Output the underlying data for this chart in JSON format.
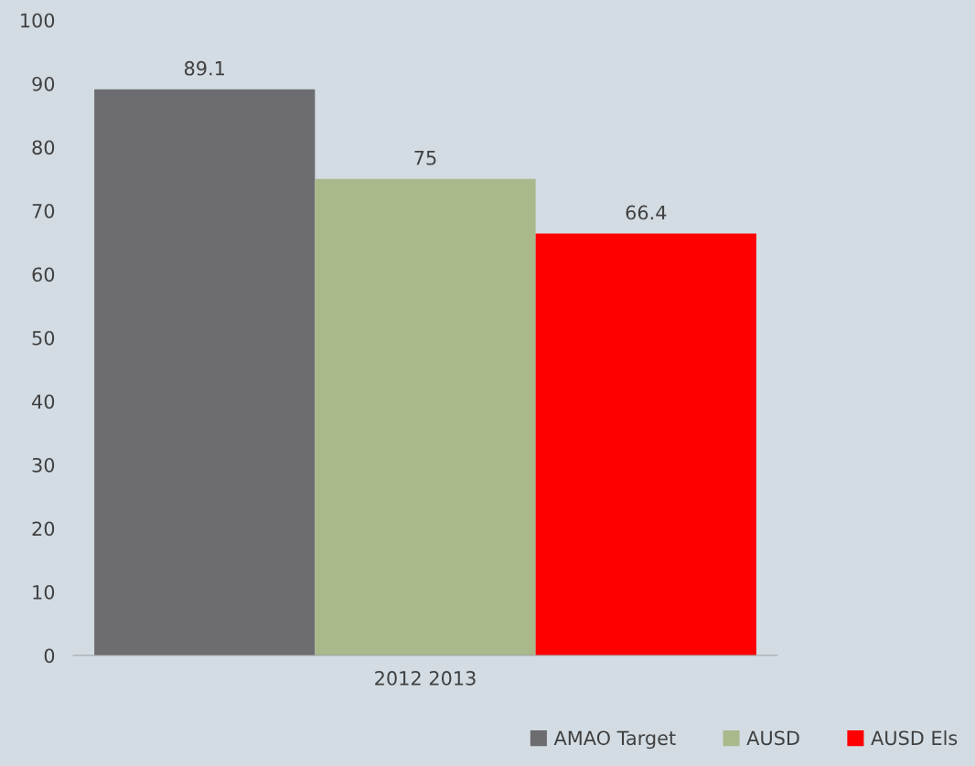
{
  "chart_data": {
    "type": "bar",
    "categories": [
      "2012 2013"
    ],
    "series": [
      {
        "name": "AMAO Target",
        "color": "#6d6c70",
        "values": [
          89.1
        ]
      },
      {
        "name": "AUSD",
        "color": "#a9b98c",
        "values": [
          75
        ]
      },
      {
        "name": "AUSD Els",
        "color": "#ff0000",
        "values": [
          66.4
        ]
      }
    ],
    "ylim": [
      0,
      100
    ],
    "yticks": [
      0,
      10,
      20,
      30,
      40,
      50,
      60,
      70,
      80,
      90,
      100
    ],
    "data_labels": true,
    "legend": "bottom right",
    "grid": false
  }
}
